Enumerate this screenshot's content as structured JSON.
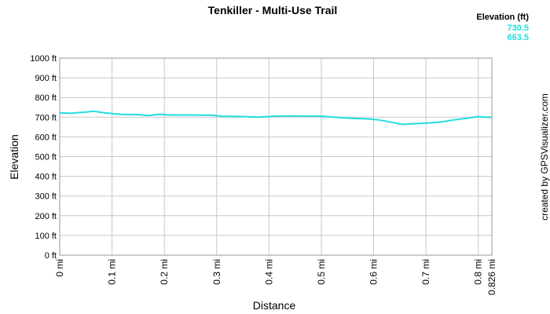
{
  "chart_data": {
    "type": "line",
    "title": "Tenkiller - Multi-Use Trail",
    "x_label": "Distance",
    "y_label": "Elevation",
    "credit": "created by GPSVisualizer.com",
    "stats": {
      "title": "Elevation (ft)",
      "max": 730.5,
      "min": 663.5,
      "color": "#22dddd"
    },
    "x": [
      0,
      0.02,
      0.03,
      0.05,
      0.065,
      0.08,
      0.1,
      0.12,
      0.15,
      0.17,
      0.19,
      0.21,
      0.25,
      0.29,
      0.31,
      0.35,
      0.38,
      0.41,
      0.45,
      0.5,
      0.53,
      0.56,
      0.59,
      0.61,
      0.63,
      0.655,
      0.67,
      0.7,
      0.73,
      0.75,
      0.78,
      0.8,
      0.81,
      0.826
    ],
    "series": [
      {
        "name": "Elevation",
        "color": "#22dddd",
        "values": [
          722,
          720,
          722,
          726,
          730.5,
          724,
          718,
          714,
          713,
          708,
          715,
          711,
          711,
          710,
          705,
          703,
          700,
          705,
          706,
          705,
          699,
          694,
          691,
          686,
          676,
          663.5,
          666,
          670,
          676,
          685,
          695,
          703,
          700,
          700
        ]
      }
    ],
    "xlim": [
      0,
      0.826
    ],
    "ylim": [
      0,
      1000
    ],
    "xticks": [
      {
        "value": 0,
        "label": "0 mi"
      },
      {
        "value": 0.1,
        "label": "0.1 mi"
      },
      {
        "value": 0.2,
        "label": "0.2 mi"
      },
      {
        "value": 0.3,
        "label": "0.3 mi"
      },
      {
        "value": 0.4,
        "label": "0.4 mi"
      },
      {
        "value": 0.5,
        "label": "0.5 mi"
      },
      {
        "value": 0.6,
        "label": "0.6 mi"
      },
      {
        "value": 0.7,
        "label": "0.7 mi"
      },
      {
        "value": 0.8,
        "label": "0.8 mi"
      },
      {
        "value": 0.826,
        "label": "0.826 mi"
      }
    ],
    "yticks": [
      {
        "value": 0,
        "label": "0 ft"
      },
      {
        "value": 100,
        "label": "100 ft"
      },
      {
        "value": 200,
        "label": "200 ft"
      },
      {
        "value": 300,
        "label": "300 ft"
      },
      {
        "value": 400,
        "label": "400 ft"
      },
      {
        "value": 500,
        "label": "500 ft"
      },
      {
        "value": 600,
        "label": "600 ft"
      },
      {
        "value": 700,
        "label": "700 ft"
      },
      {
        "value": 800,
        "label": "800 ft"
      },
      {
        "value": 900,
        "label": "900 ft"
      },
      {
        "value": 1000,
        "label": "1000 ft"
      }
    ],
    "grid": true
  }
}
